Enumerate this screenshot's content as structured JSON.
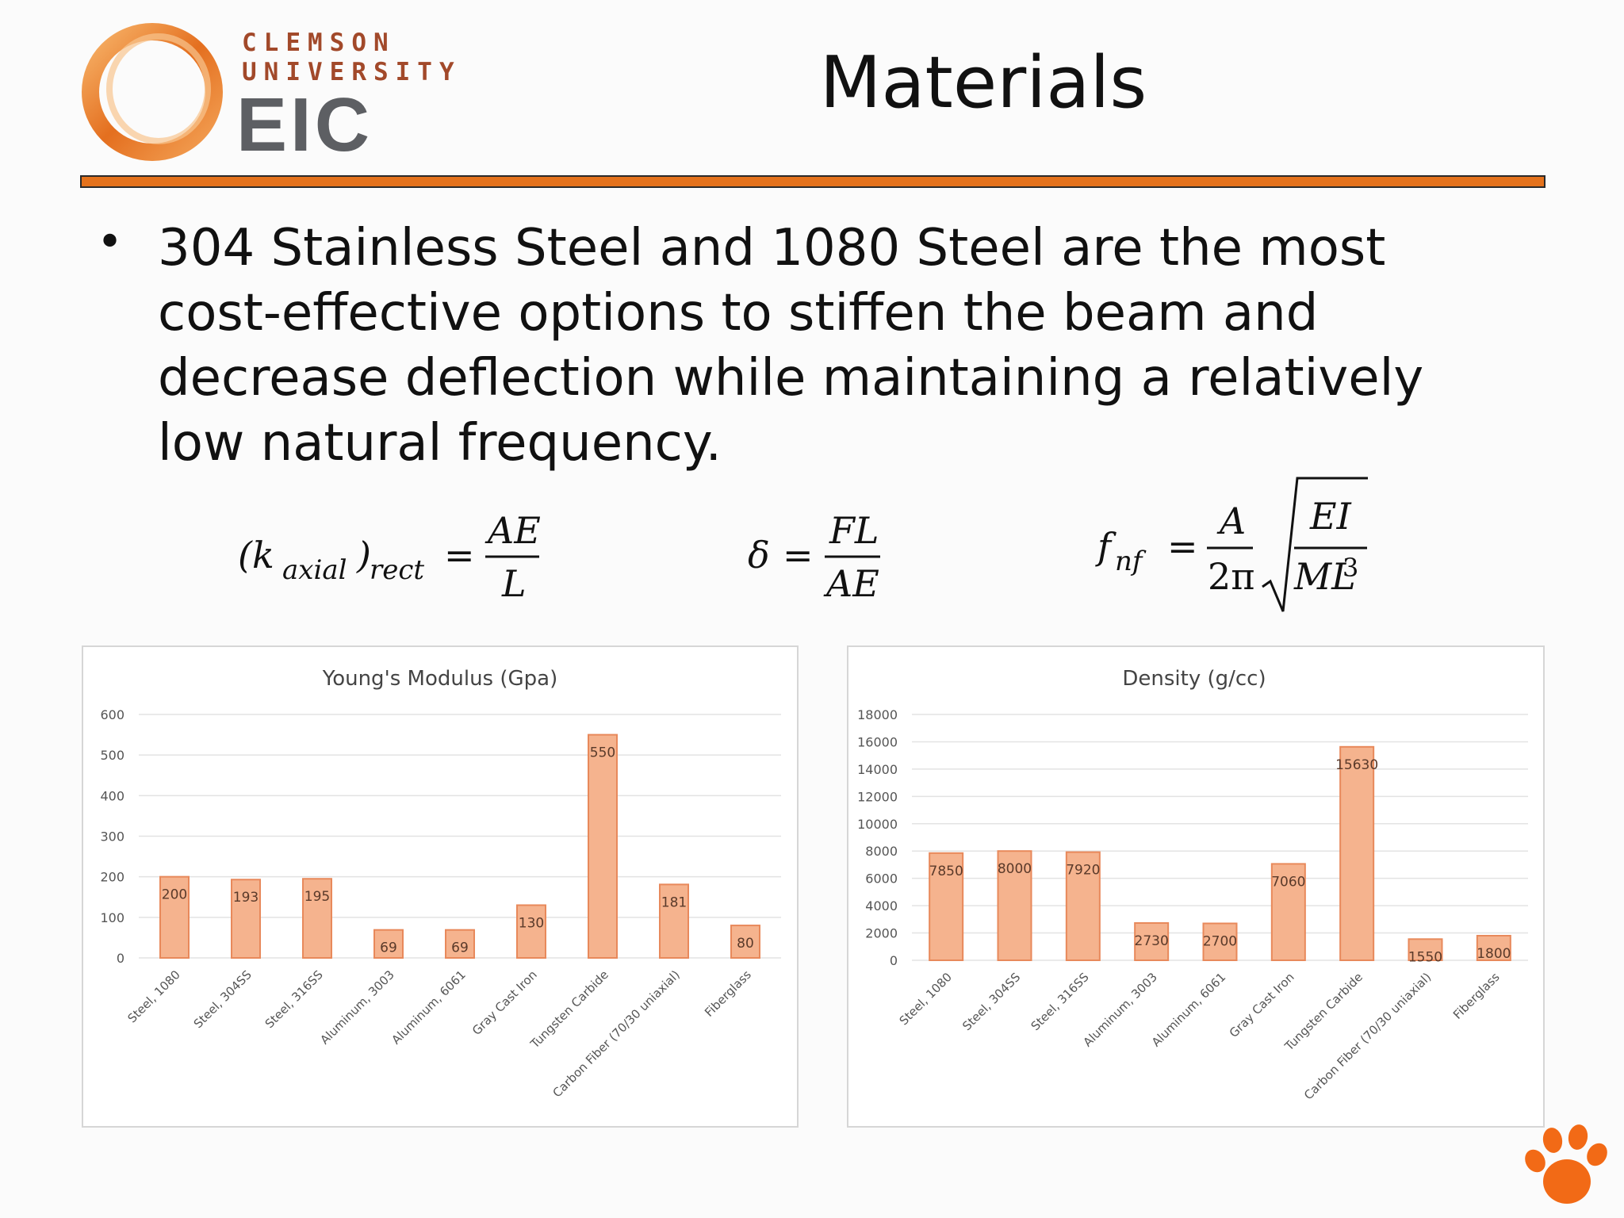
{
  "logo": {
    "line1": "CLEMSON",
    "line2": "UNIVERSITY",
    "line3": "EIC"
  },
  "slide": {
    "title": "Materials",
    "bullet": "304 Stainless Steel and 1080 Steel are the most cost-effective options to stiffen the beam and decrease deflection while maintaining a relatively low natural frequency."
  },
  "colors": {
    "accent": "#e4721c",
    "bar_fill": "#f5b38e",
    "bar_stroke": "#e8895b",
    "label_text": "#5a3a2a"
  },
  "formulas": {
    "stiffness": {
      "lhs": "(k",
      "sub": "axial",
      "mid": ")",
      "sub2": "rect",
      "num": "AE",
      "den": "L"
    },
    "deflection": {
      "lhs": "δ",
      "num": "FL",
      "den": "AE"
    },
    "frequency": {
      "lhs": "f",
      "sub": "nf",
      "num": "A",
      "den": "2π",
      "rad_num": "EI",
      "rad_den": "ML",
      "rad_exp": "3"
    }
  },
  "icons": {
    "logo": "clemson-eic-ring-logo",
    "paw": "tiger-paw-icon"
  },
  "chart_data": [
    {
      "type": "bar",
      "title": "Young's Modulus (Gpa)",
      "categories": [
        "Steel, 1080",
        "Steel, 304SS",
        "Steel, 316SS",
        "Aluminum, 3003",
        "Aluminum, 6061",
        "Gray Cast Iron",
        "Tungsten Carbide",
        "Carbon Fiber (70/30 uniaxial)",
        "Fiberglass"
      ],
      "values": [
        200,
        193,
        195,
        69,
        69,
        130,
        550,
        181,
        80
      ],
      "ylim": [
        0,
        600
      ],
      "yticks": [
        0,
        100,
        200,
        300,
        400,
        500,
        600
      ],
      "grid": true,
      "data_labels": true
    },
    {
      "type": "bar",
      "title": "Density (g/cc)",
      "categories": [
        "Steel, 1080",
        "Steel, 304SS",
        "Steel, 316SS",
        "Aluminum, 3003",
        "Aluminum, 6061",
        "Gray Cast Iron",
        "Tungsten Carbide",
        "Carbon Fiber (70/30 uniaxial)",
        "Fiberglass"
      ],
      "values": [
        7850,
        8000,
        7920,
        2730,
        2700,
        7060,
        15630,
        1550,
        1800
      ],
      "ylim": [
        0,
        18000
      ],
      "yticks": [
        0,
        2000,
        4000,
        6000,
        8000,
        10000,
        12000,
        14000,
        16000,
        18000
      ],
      "grid": true,
      "data_labels": true
    }
  ]
}
